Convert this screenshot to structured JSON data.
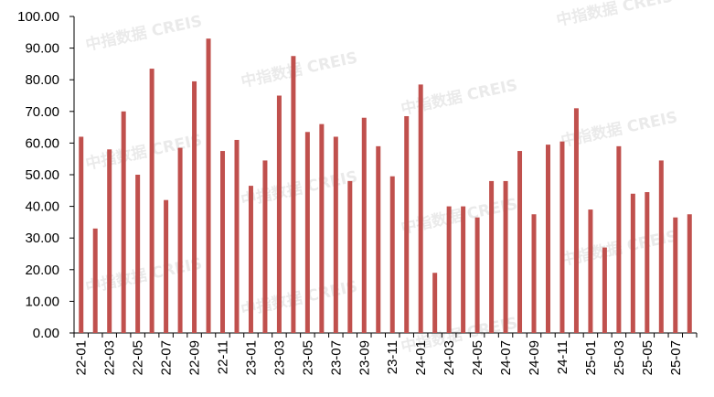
{
  "watermark": "中指数据 CREIS",
  "chart_data": {
    "type": "bar",
    "title": "",
    "xlabel": "",
    "ylabel": "",
    "ylim": [
      0,
      100
    ],
    "y_ticks": [
      "0.00",
      "10.00",
      "20.00",
      "30.00",
      "40.00",
      "50.00",
      "60.00",
      "70.00",
      "80.00",
      "90.00",
      "100.00"
    ],
    "grid": false,
    "bar_color": "#c0504d",
    "categories": [
      "22-01",
      "22-02",
      "22-03",
      "22-04",
      "22-05",
      "22-06",
      "22-07",
      "22-08",
      "22-09",
      "22-10",
      "22-11",
      "22-12",
      "23-01",
      "23-02",
      "23-03",
      "23-04",
      "23-05",
      "23-06",
      "23-07",
      "23-08",
      "23-09",
      "23-10",
      "23-11",
      "23-12",
      "24-01",
      "24-02",
      "24-03",
      "24-04",
      "24-05",
      "24-06",
      "24-07",
      "24-08",
      "24-09",
      "24-10",
      "24-11",
      "24-12",
      "25-01",
      "25-02",
      "25-03",
      "25-04",
      "25-05",
      "25-06",
      "25-07",
      "25-08"
    ],
    "x_tick_labels": [
      "22-01",
      "22-03",
      "22-05",
      "22-07",
      "22-09",
      "22-11",
      "23-01",
      "23-03",
      "23-05",
      "23-07",
      "23-09",
      "23-11",
      "24-01",
      "24-03",
      "24-05",
      "24-07",
      "24-09",
      "24-11",
      "25-01",
      "25-03",
      "25-05",
      "25-07"
    ],
    "values": [
      62,
      33,
      58,
      70,
      50,
      83.5,
      42,
      58.5,
      79.5,
      93,
      57.5,
      61,
      46.5,
      54.5,
      75,
      87.5,
      63.5,
      66,
      62,
      48,
      68,
      59,
      49.5,
      68.5,
      78.5,
      19,
      40,
      40,
      36.5,
      48,
      48,
      57.5,
      37.5,
      59.5,
      60.5,
      71,
      39,
      27,
      59,
      44,
      44.5,
      54.5,
      36.5,
      37.5
    ]
  }
}
